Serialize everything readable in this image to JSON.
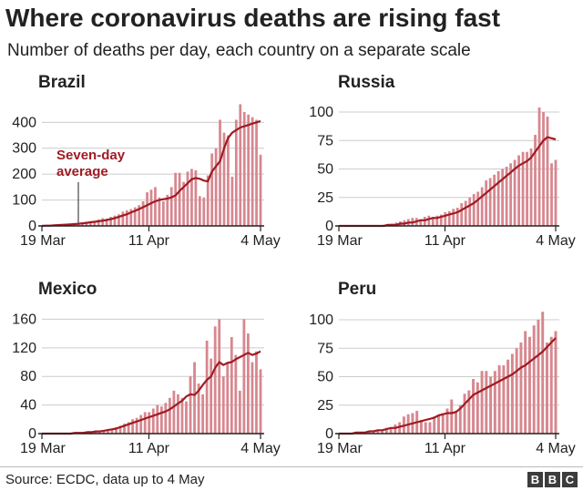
{
  "title": "Where coronavirus deaths are rising fast",
  "subtitle": "Number of deaths per day, each country on a separate scale",
  "source": "Source: ECDC, data up to 4 May",
  "logo": [
    "B",
    "B",
    "C"
  ],
  "colors": {
    "bars": "#d7878f",
    "line": "#9e1b22",
    "axis": "#222222",
    "grid": "#cccccc"
  },
  "chart_data": [
    {
      "type": "bar",
      "country": "Brazil",
      "x_ticks": [
        "19 Mar",
        "11 Apr",
        "4 May"
      ],
      "y_ticks": [
        0,
        100,
        200,
        300,
        400
      ],
      "ylim": [
        0,
        475
      ],
      "annotation": [
        "Seven-day",
        "average"
      ],
      "annotation_day": 9,
      "values": [
        1,
        2,
        3,
        4,
        5,
        6,
        7,
        9,
        10,
        12,
        14,
        16,
        18,
        20,
        25,
        30,
        28,
        35,
        40,
        45,
        55,
        60,
        65,
        72,
        80,
        95,
        130,
        140,
        150,
        110,
        95,
        120,
        150,
        205,
        205,
        170,
        210,
        220,
        215,
        115,
        110,
        195,
        280,
        300,
        410,
        360,
        350,
        190,
        410,
        470,
        440,
        430,
        420,
        410,
        275
      ],
      "average": [
        0,
        1,
        1,
        2,
        3,
        4,
        5,
        6,
        7,
        8,
        10,
        12,
        14,
        16,
        18,
        20,
        23,
        26,
        30,
        35,
        40,
        45,
        52,
        58,
        65,
        72,
        80,
        88,
        95,
        100,
        103,
        106,
        110,
        118,
        135,
        150,
        165,
        180,
        185,
        182,
        175,
        172,
        210,
        230,
        250,
        300,
        340,
        360,
        370,
        380,
        385,
        390,
        395,
        400,
        405
      ]
    },
    {
      "type": "bar",
      "country": "Russia",
      "x_ticks": [
        "19 Mar",
        "11 Apr",
        "4 May"
      ],
      "y_ticks": [
        0,
        25,
        50,
        75,
        100
      ],
      "ylim": [
        0,
        108
      ],
      "values": [
        0,
        0,
        0,
        0,
        0,
        0,
        0,
        0,
        0,
        0,
        0,
        1,
        1,
        2,
        3,
        4,
        5,
        6,
        7,
        7,
        6,
        8,
        9,
        8,
        9,
        10,
        12,
        13,
        15,
        16,
        20,
        22,
        25,
        28,
        30,
        34,
        40,
        42,
        45,
        48,
        50,
        52,
        55,
        58,
        62,
        65,
        65,
        68,
        80,
        104,
        100,
        96,
        55,
        58
      ],
      "average": [
        0,
        0,
        0,
        0,
        0,
        0,
        0,
        0,
        0,
        0,
        0,
        0,
        1,
        1,
        1,
        2,
        2,
        3,
        3,
        4,
        5,
        5,
        6,
        7,
        7,
        8,
        9,
        10,
        11,
        12,
        14,
        16,
        18,
        20,
        23,
        26,
        29,
        32,
        35,
        38,
        41,
        44,
        47,
        50,
        53,
        55,
        57,
        60,
        65,
        70,
        75,
        78,
        77,
        76
      ]
    },
    {
      "type": "bar",
      "country": "Mexico",
      "x_ticks": [
        "19 Mar",
        "11 Apr",
        "4 May"
      ],
      "y_ticks": [
        0,
        40,
        80,
        120,
        160
      ],
      "ylim": [
        0,
        172
      ],
      "values": [
        0,
        0,
        0,
        0,
        0,
        0,
        0,
        1,
        1,
        1,
        2,
        2,
        3,
        3,
        4,
        5,
        6,
        7,
        9,
        11,
        14,
        16,
        20,
        22,
        26,
        30,
        30,
        35,
        40,
        38,
        43,
        50,
        60,
        55,
        50,
        45,
        80,
        100,
        70,
        55,
        130,
        105,
        150,
        160,
        80,
        100,
        135,
        110,
        60,
        160,
        140,
        100,
        115,
        90
      ],
      "average": [
        0,
        0,
        0,
        0,
        0,
        0,
        0,
        0,
        1,
        1,
        1,
        2,
        2,
        3,
        3,
        4,
        5,
        6,
        7,
        9,
        11,
        13,
        15,
        17,
        19,
        21,
        23,
        25,
        27,
        29,
        31,
        34,
        38,
        42,
        46,
        52,
        55,
        54,
        60,
        68,
        75,
        80,
        92,
        100,
        96,
        99,
        100,
        104,
        107,
        110,
        113,
        110,
        112,
        115
      ]
    },
    {
      "type": "bar",
      "country": "Peru",
      "x_ticks": [
        "19 Mar",
        "11 Apr",
        "4 May"
      ],
      "y_ticks": [
        0,
        25,
        50,
        75,
        100
      ],
      "ylim": [
        0,
        108
      ],
      "values": [
        0,
        0,
        0,
        0,
        0,
        1,
        1,
        2,
        2,
        3,
        3,
        5,
        5,
        8,
        10,
        15,
        17,
        18,
        20,
        12,
        10,
        10,
        15,
        16,
        18,
        22,
        30,
        20,
        25,
        35,
        38,
        48,
        45,
        55,
        55,
        50,
        55,
        60,
        60,
        65,
        70,
        75,
        80,
        90,
        85,
        95,
        100,
        107,
        80,
        85,
        90
      ],
      "average": [
        0,
        0,
        0,
        0,
        1,
        1,
        1,
        2,
        2,
        3,
        3,
        4,
        5,
        5,
        6,
        7,
        8,
        9,
        10,
        11,
        12,
        13,
        14,
        16,
        17,
        18,
        18,
        19,
        22,
        26,
        30,
        34,
        36,
        38,
        40,
        42,
        44,
        46,
        48,
        50,
        52,
        55,
        58,
        60,
        63,
        66,
        69,
        72,
        76,
        80,
        84
      ]
    }
  ]
}
